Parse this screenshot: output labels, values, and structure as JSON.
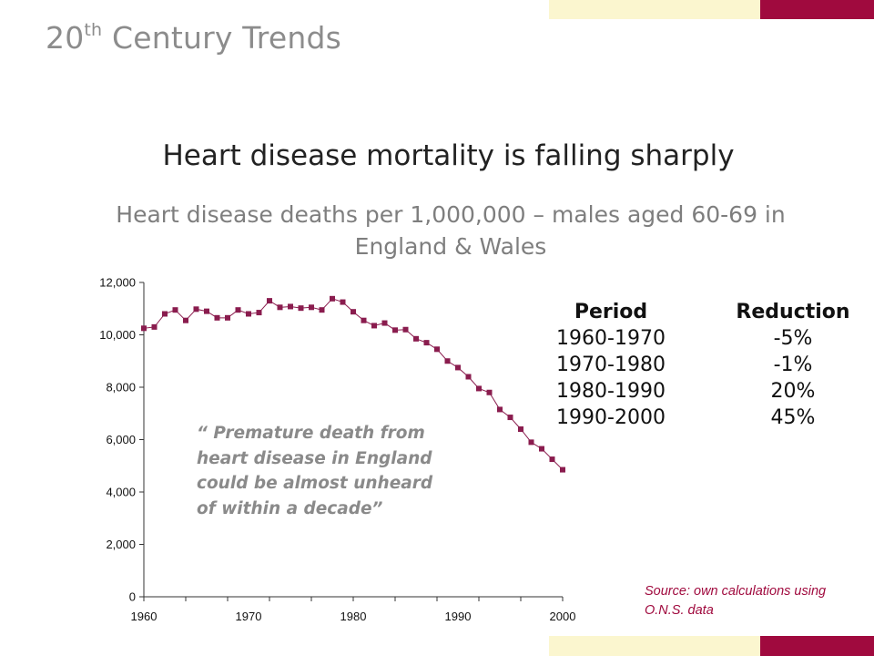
{
  "header": {
    "section_title_prefix": "20",
    "section_title_sup": "th",
    "section_title_suffix": " Century Trends"
  },
  "headline": "Heart disease mortality is falling sharply",
  "subtitle": "Heart disease deaths per 1,000,000 – males aged 60-69 in England & Wales",
  "colors": {
    "series": "#8a1c4e",
    "accent_maroon": "#a00a3e",
    "accent_cream": "#fbf6cf",
    "title_gray": "#8c8c8c"
  },
  "chart_data": {
    "type": "line",
    "title": "",
    "xlabel": "",
    "ylabel": "",
    "xlim": [
      1960,
      2000
    ],
    "ylim": [
      0,
      12000
    ],
    "x_ticks": [
      "1960",
      "1970",
      "1980",
      "1990",
      "2000"
    ],
    "y_ticks": [
      "0",
      "2,000",
      "4,000",
      "6,000",
      "8,000",
      "10,000",
      "12,000"
    ],
    "grid": false,
    "x": [
      1960,
      1961,
      1962,
      1963,
      1964,
      1965,
      1966,
      1967,
      1968,
      1969,
      1970,
      1971,
      1972,
      1973,
      1974,
      1975,
      1976,
      1977,
      1978,
      1979,
      1980,
      1981,
      1982,
      1983,
      1984,
      1985,
      1986,
      1987,
      1988,
      1989,
      1990,
      1991,
      1992,
      1993,
      1994,
      1995,
      1996,
      1997,
      1998,
      1999,
      2000
    ],
    "series": [
      {
        "values": [
          10250,
          10300,
          10800,
          10950,
          10550,
          10980,
          10900,
          10650,
          10650,
          10950,
          10800,
          10850,
          11300,
          11050,
          11080,
          11020,
          11050,
          10950,
          11380,
          11250,
          10880,
          10550,
          10350,
          10450,
          10180,
          10200,
          9850,
          9700,
          9450,
          9000,
          8750,
          8400,
          7950,
          7800,
          7150,
          6850,
          6400,
          5900,
          5650,
          5250,
          4850
        ]
      }
    ]
  },
  "reduction_table": {
    "headers": [
      "Period",
      "Reduction"
    ],
    "rows": [
      [
        "1960-1970",
        "-5%"
      ],
      [
        "1970-1980",
        "-1%"
      ],
      [
        "1980-1990",
        "20%"
      ],
      [
        "1990-2000",
        "45%"
      ]
    ]
  },
  "quote": "“ Premature death from heart disease in England could be almost unheard of within a decade”",
  "source": "Source: own calculations using O.N.S. data"
}
